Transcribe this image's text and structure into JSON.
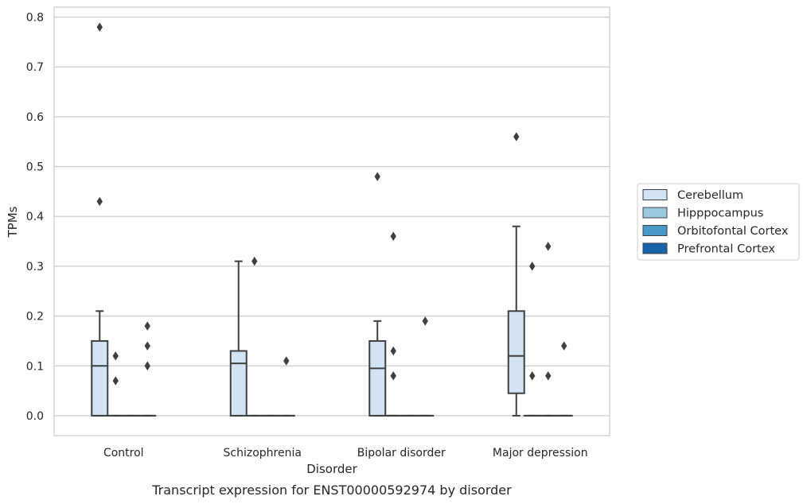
{
  "caption": "Transcript expression for ENST00000592974 by disorder",
  "chart_data": {
    "type": "box",
    "xlabel": "Disorder",
    "ylabel": "TPMs",
    "ylim": [
      -0.04,
      0.82
    ],
    "yticks": [
      0.0,
      0.1,
      0.2,
      0.3,
      0.4,
      0.5,
      0.6,
      0.7,
      0.8
    ],
    "ytick_labels": [
      "0.0",
      "0.1",
      "0.2",
      "0.3",
      "0.4",
      "0.5",
      "0.6",
      "0.7",
      "0.8"
    ],
    "grid": "horizontal",
    "legend_position": "right",
    "categories": [
      "Control",
      "Schizophrenia",
      "Bipolar disorder",
      "Major depression"
    ],
    "series": [
      {
        "name": "Cerebellum",
        "color": "#d2e3f3",
        "boxes": [
          {
            "whislo": 0.0,
            "q1": 0.0,
            "med": 0.1,
            "q3": 0.15,
            "whishi": 0.21,
            "fliers": [
              0.43,
              0.78
            ]
          },
          {
            "whislo": 0.0,
            "q1": 0.0,
            "med": 0.105,
            "q3": 0.13,
            "whishi": 0.31,
            "fliers": []
          },
          {
            "whislo": 0.0,
            "q1": 0.0,
            "med": 0.095,
            "q3": 0.15,
            "whishi": 0.19,
            "fliers": [
              0.48
            ]
          },
          {
            "whislo": 0.0,
            "q1": 0.045,
            "med": 0.12,
            "q3": 0.21,
            "whishi": 0.38,
            "fliers": [
              0.56
            ]
          }
        ]
      },
      {
        "name": "Hipppocampus",
        "color": "#9ac8e0",
        "boxes": [
          {
            "whislo": 0.0,
            "q1": 0.0,
            "med": 0.0,
            "q3": 0.0,
            "whishi": 0.0,
            "fliers": [
              0.07,
              0.12
            ]
          },
          {
            "whislo": 0.0,
            "q1": 0.0,
            "med": 0.0,
            "q3": 0.0,
            "whishi": 0.0,
            "fliers": [
              0.31
            ]
          },
          {
            "whislo": 0.0,
            "q1": 0.0,
            "med": 0.0,
            "q3": 0.0,
            "whishi": 0.0,
            "fliers": [
              0.08,
              0.13,
              0.36
            ]
          },
          {
            "whislo": 0.0,
            "q1": 0.0,
            "med": 0.0,
            "q3": 0.0,
            "whishi": 0.0,
            "fliers": [
              0.08,
              0.3
            ]
          }
        ]
      },
      {
        "name": "Orbitofontal Cortex",
        "color": "#4a98c9",
        "boxes": [
          {
            "whislo": 0.0,
            "q1": 0.0,
            "med": 0.0,
            "q3": 0.0,
            "whishi": 0.0,
            "fliers": []
          },
          {
            "whislo": 0.0,
            "q1": 0.0,
            "med": 0.0,
            "q3": 0.0,
            "whishi": 0.0,
            "fliers": []
          },
          {
            "whislo": 0.0,
            "q1": 0.0,
            "med": 0.0,
            "q3": 0.0,
            "whishi": 0.0,
            "fliers": []
          },
          {
            "whislo": 0.0,
            "q1": 0.0,
            "med": 0.0,
            "q3": 0.0,
            "whishi": 0.0,
            "fliers": [
              0.08,
              0.34
            ]
          }
        ]
      },
      {
        "name": "Prefrontal Cortex",
        "color": "#1764ab",
        "boxes": [
          {
            "whislo": 0.0,
            "q1": 0.0,
            "med": 0.0,
            "q3": 0.0,
            "whishi": 0.0,
            "fliers": [
              0.1,
              0.14,
              0.18
            ]
          },
          {
            "whislo": 0.0,
            "q1": 0.0,
            "med": 0.0,
            "q3": 0.0,
            "whishi": 0.0,
            "fliers": [
              0.11
            ]
          },
          {
            "whislo": 0.0,
            "q1": 0.0,
            "med": 0.0,
            "q3": 0.0,
            "whishi": 0.0,
            "fliers": [
              0.19
            ]
          },
          {
            "whislo": 0.0,
            "q1": 0.0,
            "med": 0.0,
            "q3": 0.0,
            "whishi": 0.0,
            "fliers": [
              0.14
            ]
          }
        ]
      }
    ]
  }
}
